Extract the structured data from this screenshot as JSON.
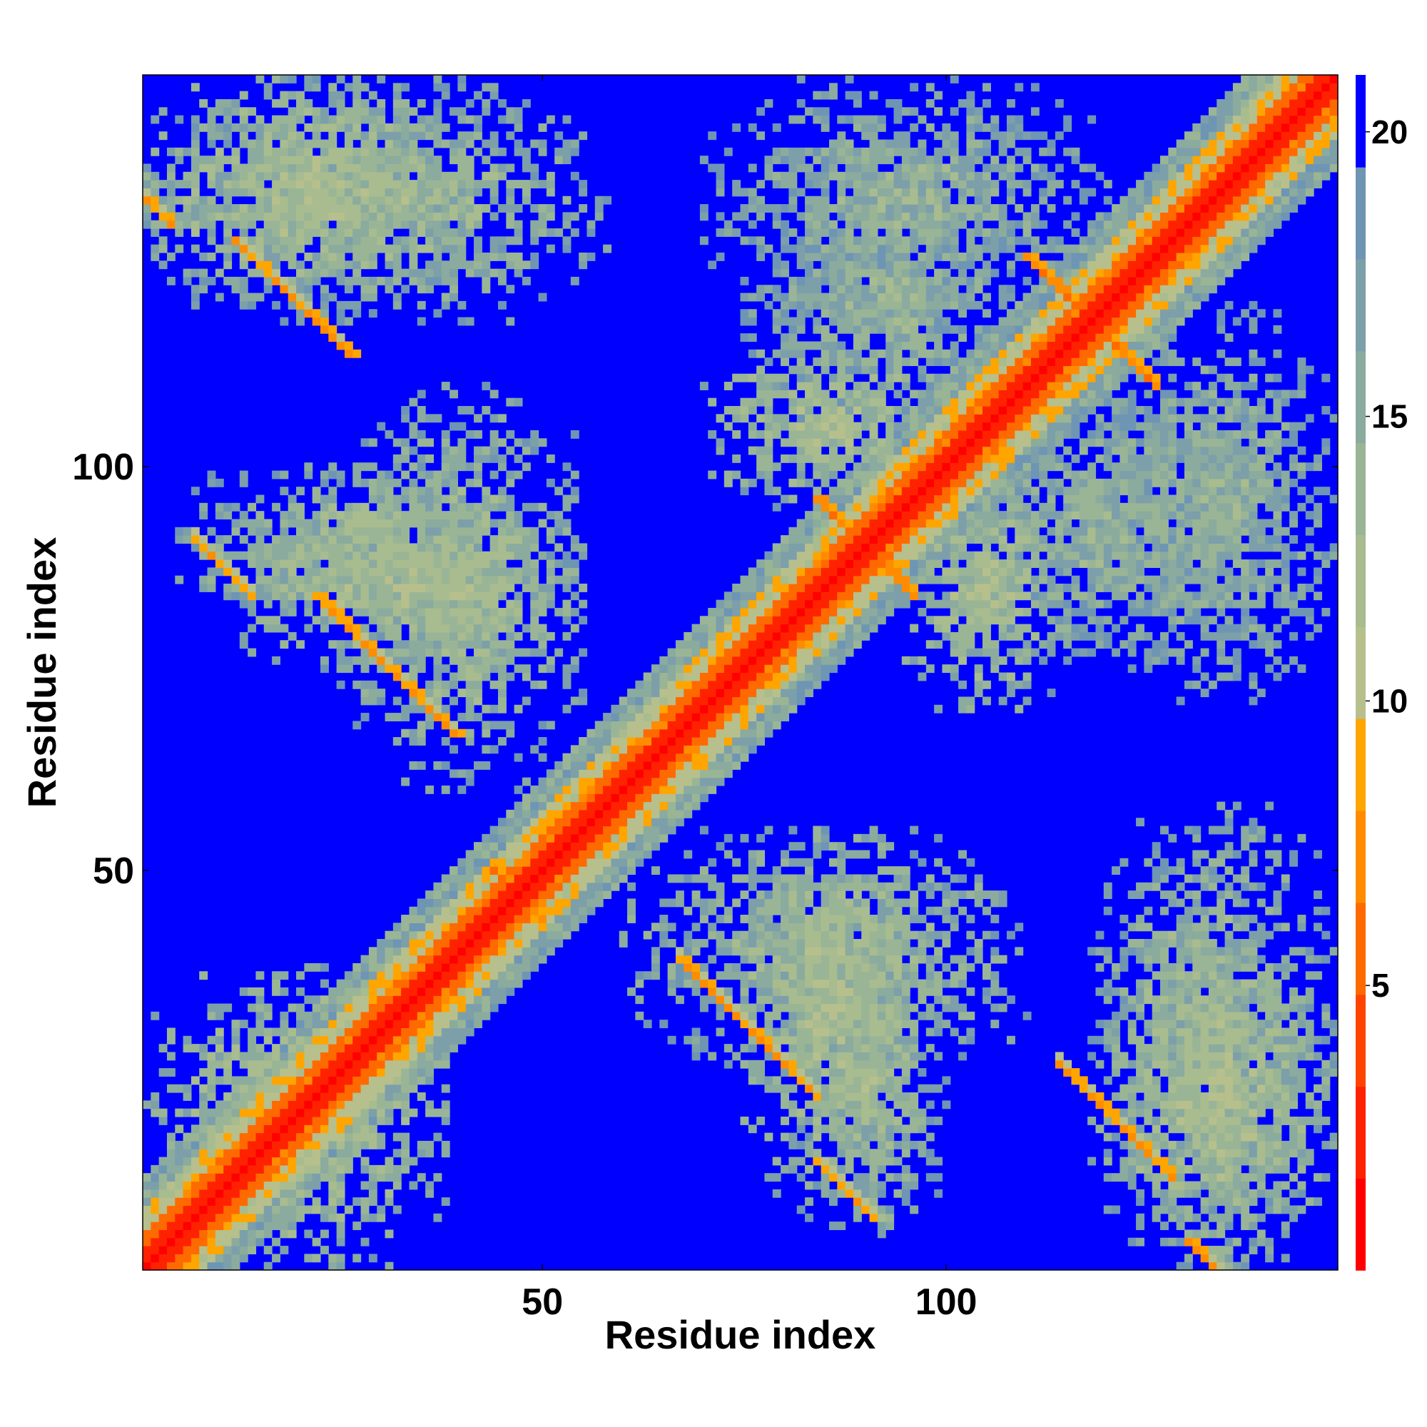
{
  "chart_data": {
    "type": "heatmap",
    "title": "",
    "xlabel": "Residue index",
    "ylabel": "Residue index",
    "xlim": [
      1,
      148
    ],
    "ylim": [
      1,
      148
    ],
    "x_ticks": [
      50,
      100
    ],
    "y_ticks": [
      50,
      100
    ],
    "colorbar": {
      "ticks": [
        5,
        10,
        15,
        20
      ],
      "range": [
        0,
        21
      ],
      "colors": [
        "#ff0000",
        "#ff2200",
        "#ff4400",
        "#ff6a00",
        "#ff8c00",
        "#ffa500",
        "#b7c08c",
        "#a8bc90",
        "#9ab596",
        "#8aab9e",
        "#7c9faa",
        "#6e95b4",
        "#0000ff"
      ]
    },
    "values_note_cmap": "distance",
    "diagonal_value": 0,
    "background_value": 21,
    "contact_regions": [
      {
        "x": [
          1,
          38
        ],
        "y": [
          1,
          38
        ],
        "value": 14
      },
      {
        "x": [
          1,
          58
        ],
        "y": [
          118,
          148
        ],
        "value": 15
      },
      {
        "x": [
          118,
          148
        ],
        "y": [
          1,
          58
        ],
        "value": 15
      },
      {
        "x": [
          10,
          55
        ],
        "y": [
          75,
          96
        ],
        "value": 14
      },
      {
        "x": [
          75,
          96
        ],
        "y": [
          10,
          55
        ],
        "value": 14
      },
      {
        "x": [
          25,
          55
        ],
        "y": [
          60,
          110
        ],
        "value": 15
      },
      {
        "x": [
          60,
          110
        ],
        "y": [
          25,
          55
        ],
        "value": 15
      },
      {
        "x": [
          70,
          100
        ],
        "y": [
          95,
          115
        ],
        "value": 14
      },
      {
        "x": [
          95,
          115
        ],
        "y": [
          70,
          100
        ],
        "value": 14
      },
      {
        "x": [
          80,
          100
        ],
        "y": [
          5,
          45
        ],
        "value": 15
      },
      {
        "x": [
          5,
          45
        ],
        "y": [
          80,
          100
        ],
        "value": 15
      },
      {
        "x": [
          120,
          148
        ],
        "y": [
          1,
          40
        ],
        "value": 14
      },
      {
        "x": [
          1,
          40
        ],
        "y": [
          120,
          148
        ],
        "value": 14
      },
      {
        "x": [
          70,
          120
        ],
        "y": [
          120,
          148
        ],
        "value": 16
      },
      {
        "x": [
          120,
          148
        ],
        "y": [
          70,
          120
        ],
        "value": 16
      },
      {
        "x": [
          105,
          135
        ],
        "y": [
          75,
          110
        ],
        "value": 16
      },
      {
        "x": [
          75,
          110
        ],
        "y": [
          105,
          135
        ],
        "value": 16
      }
    ],
    "strands": [
      {
        "a0": 44,
        "b0": 50,
        "len": 5,
        "dir": "anti",
        "value": 6
      },
      {
        "a0": 84,
        "b0": 96,
        "len": 8,
        "dir": "anti",
        "value": 6
      },
      {
        "a0": 110,
        "b0": 126,
        "len": 9,
        "dir": "anti",
        "value": 6
      },
      {
        "a0": 12,
        "b0": 128,
        "len": 15,
        "dir": "anti",
        "value": 7
      },
      {
        "a0": 22,
        "b0": 84,
        "len": 18,
        "dir": "anti",
        "value": 7
      },
      {
        "a0": 84,
        "b0": 14,
        "len": 8,
        "dir": "anti",
        "value": 8
      },
      {
        "a0": 130,
        "b0": 4,
        "len": 18,
        "dir": "anti",
        "value": 7
      }
    ]
  }
}
